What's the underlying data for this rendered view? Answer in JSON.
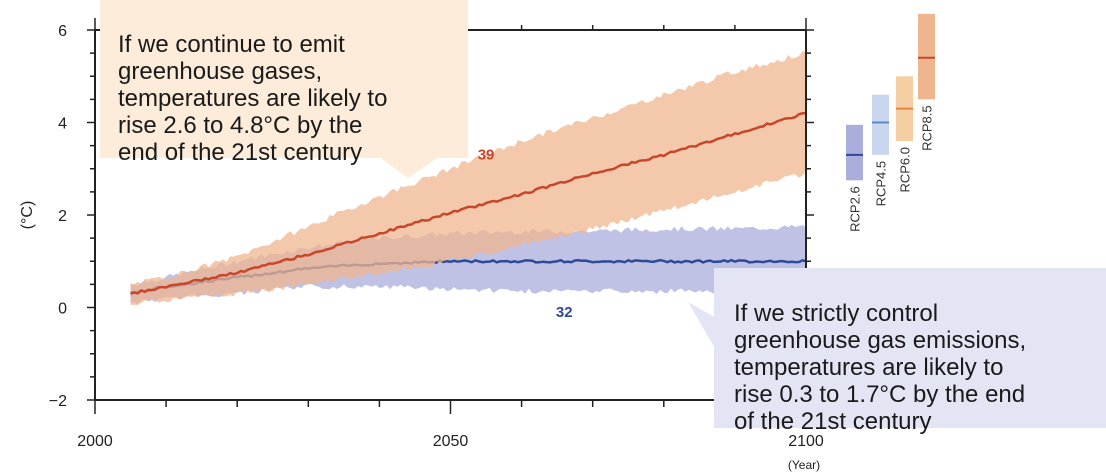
{
  "chart_data": {
    "type": "area",
    "xlabel": "(Year)",
    "ylabel": "(°C)",
    "xlim": [
      2000,
      2100
    ],
    "ylim": [
      -2,
      6
    ],
    "x_ticks": [
      "2000",
      "2050",
      "2100"
    ],
    "y_ticks": [
      "6",
      "4",
      "2",
      "0",
      "−2"
    ],
    "grid": false,
    "series": [
      {
        "name": "RCP8.5",
        "color": "#c8472b",
        "band_color": "#efb58f",
        "x": [
          2005,
          2010,
          2020,
          2030,
          2040,
          2050,
          2060,
          2070,
          2080,
          2090,
          2100
        ],
        "mean": [
          0.3,
          0.45,
          0.75,
          1.15,
          1.6,
          2.05,
          2.45,
          2.9,
          3.3,
          3.75,
          4.2
        ],
        "low": [
          0.1,
          0.15,
          0.3,
          0.5,
          0.75,
          1.0,
          1.35,
          1.7,
          2.1,
          2.5,
          2.9
        ],
        "high": [
          0.5,
          0.65,
          1.1,
          1.75,
          2.4,
          3.0,
          3.6,
          4.1,
          4.6,
          5.1,
          5.5
        ]
      },
      {
        "name": "RCP2.6",
        "color": "#2e4a98",
        "band_color": "#a9aedc",
        "x": [
          2005,
          2010,
          2020,
          2030,
          2040,
          2050,
          2060,
          2070,
          2080,
          2090,
          2100
        ],
        "mean": [
          0.3,
          0.45,
          0.65,
          0.85,
          0.95,
          1.0,
          1.0,
          1.0,
          1.0,
          1.0,
          1.0
        ],
        "low": [
          0.1,
          0.2,
          0.3,
          0.45,
          0.45,
          0.4,
          0.35,
          0.35,
          0.35,
          0.35,
          0.35
        ],
        "high": [
          0.5,
          0.65,
          1.0,
          1.3,
          1.5,
          1.6,
          1.65,
          1.65,
          1.7,
          1.7,
          1.75
        ]
      }
    ],
    "model_counts": [
      {
        "text": "39",
        "x": 2055,
        "y": 3.2,
        "color": "#c8472b"
      },
      {
        "text": "32",
        "x": 2066,
        "y": -0.2,
        "color": "#2e4a98"
      }
    ],
    "rcp_bars": [
      {
        "name": "RCP2.6",
        "mean": 3.3,
        "low": 2.75,
        "high": 3.95,
        "color": "#2e4a98",
        "band_color": "#a9aedc"
      },
      {
        "name": "RCP4.5",
        "mean": 4.0,
        "low": 3.3,
        "high": 4.6,
        "color": "#5b88c9",
        "band_color": "#c8d6ef"
      },
      {
        "name": "RCP6.0",
        "mean": 4.3,
        "low": 3.6,
        "high": 5.0,
        "color": "#e5853a",
        "band_color": "#f5cfa3"
      },
      {
        "name": "RCP8.5",
        "mean": 5.4,
        "low": 4.5,
        "high": 6.35,
        "color": "#c8472b",
        "band_color": "#efb58f"
      }
    ]
  },
  "annotations": {
    "high": {
      "text": "If we continue to emit\ngreenhouse gases,\ntemperatures are likely to\nrise 2.6 to 4.8°C by the\nend of the 21st century",
      "bg_color": "#fcecd9"
    },
    "low": {
      "text": "If we strictly control\ngreenhouse gas emissions,\ntemperatures are likely to\nrise 0.3 to 1.7°C by the end\nof the 21st century",
      "bg_color": "#e3e5f5"
    }
  }
}
